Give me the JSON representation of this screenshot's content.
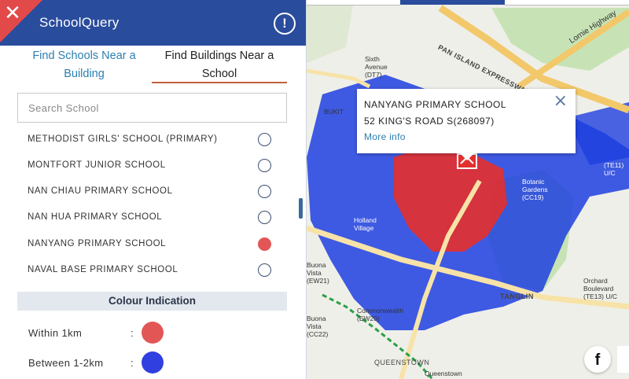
{
  "app": {
    "title": "SchoolQuery",
    "close_icon": "close-icon",
    "info_icon": "info-icon"
  },
  "tabs": [
    {
      "label": "Find Schools Near a Building",
      "active": false
    },
    {
      "label": "Find Buildings Near a School",
      "active": true
    }
  ],
  "search": {
    "placeholder": "Search School",
    "value": ""
  },
  "schools": [
    {
      "name": "METHODIST GIRLS' SCHOOL (PRIMARY)",
      "selected": false
    },
    {
      "name": "MONTFORT JUNIOR SCHOOL",
      "selected": false
    },
    {
      "name": "NAN CHIAU PRIMARY SCHOOL",
      "selected": false
    },
    {
      "name": "NAN HUA PRIMARY SCHOOL",
      "selected": false
    },
    {
      "name": "NANYANG PRIMARY SCHOOL",
      "selected": true
    },
    {
      "name": "NAVAL BASE PRIMARY SCHOOL",
      "selected": false
    }
  ],
  "legend": {
    "title": "Colour Indication",
    "items": [
      {
        "label": "Within 1km",
        "colon": ":",
        "color": "#e25656"
      },
      {
        "label": "Between 1-2km",
        "colon": ":",
        "color": "#2f3fe0"
      }
    ]
  },
  "popup": {
    "name": "NANYANG PRIMARY SCHOOL",
    "address": "52 KING'S ROAD S(268097)",
    "link": "More info",
    "close": "×"
  },
  "map": {
    "labels": {
      "pan_island": "PAN ISLAND EXPRESSWAY",
      "lornie": "Lornie Highway",
      "sixth_avenue": "Sixth Avenue (DT7)",
      "bukit": "BUKIT",
      "botanic": "Botanic Gardens (CC19)",
      "buona_vista": "Buona Vista (EW21)",
      "buona_vista_cc": "Buona Vista (CC22)",
      "commonwealth": "Commonwealth (EW20)",
      "tanglin": "TANGLIN",
      "orchard": "Orchard Boulevard (TE13) U/C",
      "queenstown_road": "QUEENSTOWN",
      "queenstown_station": "Queenstown",
      "te11": "(TE11) U/C",
      "holland": "Holland Village"
    },
    "colors": {
      "within": "#e23030",
      "between": "#1e3fe0",
      "green": "#c7e3b5",
      "base": "#efefe9",
      "road": "#f2c86a"
    }
  },
  "social": {
    "facebook_label": "f",
    "facebook_icon": "facebook-icon"
  }
}
